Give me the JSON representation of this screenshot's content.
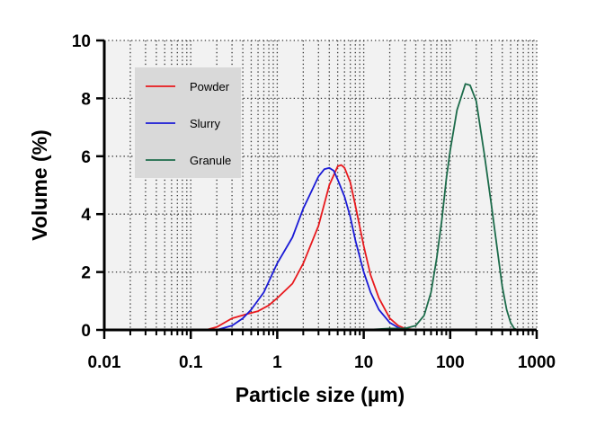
{
  "chart_data": {
    "type": "line",
    "xlabel": "Particle size (µm)",
    "ylabel": "Volume (%)",
    "x_scale": "log",
    "xlim": [
      0.01,
      1000
    ],
    "ylim": [
      0,
      10
    ],
    "x_ticks": [
      "0.01",
      "0.1",
      "1",
      "10",
      "100",
      "1000"
    ],
    "y_ticks": [
      "0",
      "2",
      "4",
      "6",
      "8",
      "10"
    ],
    "grid": true,
    "legend_position": "top-left",
    "series": [
      {
        "name": "Powder",
        "color": "#e8191d",
        "points": [
          [
            0.15,
            0
          ],
          [
            0.2,
            0.1
          ],
          [
            0.3,
            0.4
          ],
          [
            0.45,
            0.55
          ],
          [
            0.6,
            0.65
          ],
          [
            0.8,
            0.85
          ],
          [
            1,
            1.1
          ],
          [
            1.5,
            1.6
          ],
          [
            2,
            2.3
          ],
          [
            3,
            3.6
          ],
          [
            4,
            5
          ],
          [
            5,
            5.65
          ],
          [
            5.5,
            5.7
          ],
          [
            6,
            5.6
          ],
          [
            7,
            5.1
          ],
          [
            8,
            4.3
          ],
          [
            10,
            2.9
          ],
          [
            12,
            1.9
          ],
          [
            15,
            1.1
          ],
          [
            20,
            0.4
          ],
          [
            25,
            0.15
          ],
          [
            30,
            0.05
          ],
          [
            40,
            0
          ]
        ]
      },
      {
        "name": "Slurry",
        "color": "#1a1ad6",
        "points": [
          [
            0.2,
            0
          ],
          [
            0.3,
            0.15
          ],
          [
            0.4,
            0.4
          ],
          [
            0.5,
            0.7
          ],
          [
            0.7,
            1.3
          ],
          [
            1,
            2.3
          ],
          [
            1.5,
            3.2
          ],
          [
            2,
            4.2
          ],
          [
            2.5,
            4.8
          ],
          [
            3,
            5.3
          ],
          [
            3.5,
            5.55
          ],
          [
            4,
            5.6
          ],
          [
            4.5,
            5.5
          ],
          [
            5,
            5.2
          ],
          [
            6,
            4.6
          ],
          [
            7,
            3.9
          ],
          [
            8,
            3.1
          ],
          [
            10,
            2
          ],
          [
            12,
            1.3
          ],
          [
            15,
            0.7
          ],
          [
            20,
            0.25
          ],
          [
            25,
            0.08
          ],
          [
            30,
            0
          ]
        ]
      },
      {
        "name": "Granule",
        "color": "#1c6b4a",
        "points": [
          [
            10,
            0
          ],
          [
            20,
            0.05
          ],
          [
            30,
            0.05
          ],
          [
            40,
            0.15
          ],
          [
            50,
            0.5
          ],
          [
            60,
            1.3
          ],
          [
            70,
            2.5
          ],
          [
            80,
            3.8
          ],
          [
            90,
            5.2
          ],
          [
            100,
            6.2
          ],
          [
            120,
            7.6
          ],
          [
            150,
            8.5
          ],
          [
            170,
            8.45
          ],
          [
            200,
            7.9
          ],
          [
            250,
            6
          ],
          [
            300,
            4.3
          ],
          [
            350,
            2.8
          ],
          [
            400,
            1.5
          ],
          [
            450,
            0.7
          ],
          [
            500,
            0.25
          ],
          [
            550,
            0.05
          ],
          [
            600,
            0
          ]
        ]
      }
    ]
  }
}
